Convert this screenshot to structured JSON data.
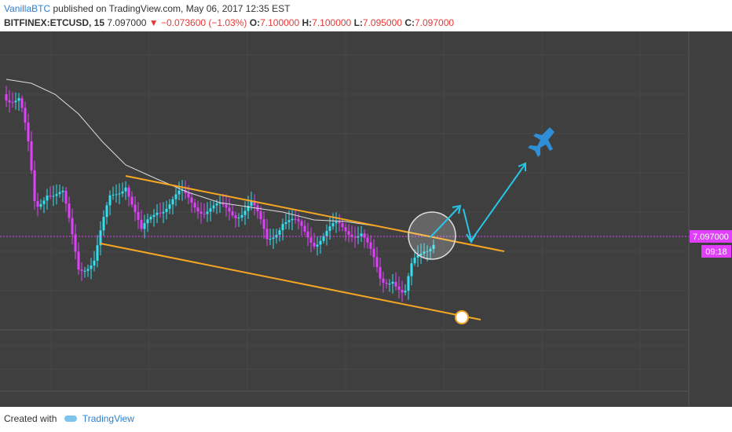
{
  "header": {
    "author": "VanillaBTC",
    "published": "published on TradingView.com, May 06, 2017 12:35 EST",
    "symbol": "BITFINEX:ETCUSD, 15",
    "last": "7.097000",
    "change": "▼ −0.073600 (−1.03%)",
    "open_label": "O:",
    "open": "7.100000",
    "high_label": "H:",
    "high": "7.100000",
    "low_label": "L:",
    "low": "7.095000",
    "close_label": "C:",
    "close": "7.097000"
  },
  "price_tag": {
    "price": "7.097000",
    "time": "09:18"
  },
  "footer": {
    "created_with": "Created with",
    "brand": "TradingView"
  }
}
